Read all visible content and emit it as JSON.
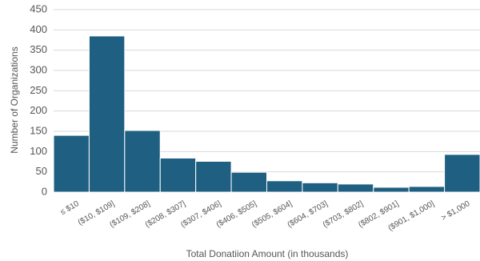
{
  "chart_data": {
    "type": "bar",
    "title": "",
    "xlabel": "Total Donatiion Amount (in thousands)",
    "ylabel": "Number of Organizations",
    "categories": [
      "≤ $10",
      "($10, $109]",
      "($109, $208]",
      "($208, $307]",
      "($307, $406]",
      "($406, $505]",
      "($505, $604]",
      "($604, $703]",
      "($703, $802]",
      "($802, $901]",
      "($901, $1,000]",
      "> $1,000"
    ],
    "values": [
      140,
      385,
      152,
      84,
      76,
      49,
      28,
      23,
      20,
      12,
      14,
      93
    ],
    "ylim": [
      0,
      450
    ],
    "yticks": [
      0,
      50,
      100,
      150,
      200,
      250,
      300,
      350,
      400,
      450
    ],
    "grid": true,
    "bar_color": "#1f5f82"
  }
}
